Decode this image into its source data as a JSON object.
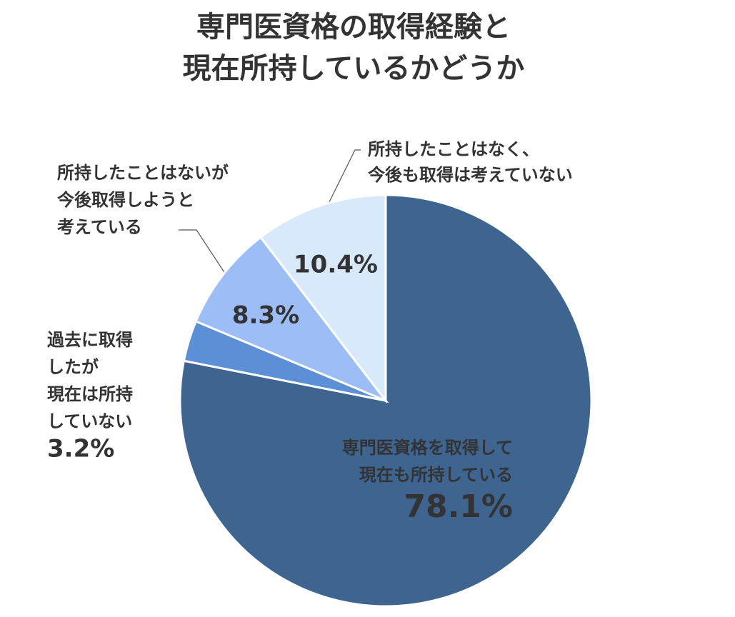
{
  "chart_data": {
    "type": "pie",
    "title": [
      "専門医資格の取得経験と",
      "現在所持しているかどうか"
    ],
    "categories": [
      [
        "専門医資格を取得して",
        "現在も所持している"
      ],
      [
        "過去に取得",
        "したが",
        "現在は所持",
        "していない"
      ],
      [
        "所持したことはないが",
        "今後取得しようと",
        "考えている"
      ],
      [
        "所持したことはなく、",
        "今後も取得は考えていない"
      ]
    ],
    "values": [
      78.1,
      3.2,
      8.3,
      10.4
    ],
    "value_labels": [
      "78.1%",
      "3.2%",
      "8.3%",
      "10.4%"
    ],
    "colors": [
      "#3d6590",
      "#5b8fd6",
      "#9dbdf7",
      "#d8e9fc"
    ]
  }
}
